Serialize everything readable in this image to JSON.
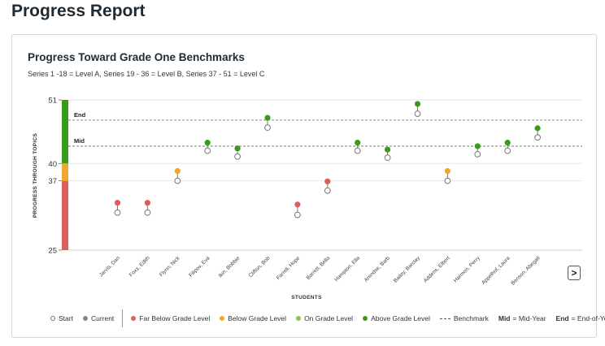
{
  "page_title": "Progress Report",
  "card": {
    "title": "Progress Toward Grade One Benchmarks",
    "subtitle": "Series 1 -18 = Level A, Series 19 - 36 = Level B, Series 37 - 51 = Level C",
    "next_icon": "chevron-right-icon",
    "next_label": ">"
  },
  "colors": {
    "far_below": "#e05d5d",
    "below": "#f0a92a",
    "on": "#8bc34a",
    "above": "#3c9a1a",
    "start": "#ffffff",
    "current": "#888888"
  },
  "chart_data": {
    "type": "scatter",
    "title": "Progress Toward Grade One Benchmarks",
    "subtitle": "Series 1 -18 = Level A, Series 19 - 36 = Level B, Series 37 - 51 = Level C",
    "xlabel": "STUDENTS",
    "ylabel": "PROGRESS THROUGH TOPICS",
    "ylim": [
      25,
      51
    ],
    "yticks": [
      25,
      37,
      40,
      51
    ],
    "bands": [
      {
        "from": 25,
        "to": 37,
        "status": "far_below"
      },
      {
        "from": 37,
        "to": 40,
        "status": "below"
      },
      {
        "from": 40,
        "to": 51,
        "status": "above"
      }
    ],
    "benchmarks": [
      {
        "label": "End",
        "value": 47.5
      },
      {
        "label": "Mid",
        "value": 43
      }
    ],
    "students": [
      {
        "name": "Jarvis, Dan",
        "start": 31.5,
        "current": 33.2,
        "status": "far_below"
      },
      {
        "name": "Foxx, Edith",
        "start": 31.5,
        "current": 33.2,
        "status": "far_below"
      },
      {
        "name": "Flynn, Nick",
        "start": 37,
        "current": 38.7,
        "status": "below"
      },
      {
        "name": "Filipov, Eva",
        "start": 42.2,
        "current": 43.6,
        "status": "above"
      },
      {
        "name": "Ikin, Bobbie",
        "start": 41.2,
        "current": 42.6,
        "status": "above"
      },
      {
        "name": "Clifton, Bob",
        "start": 46.2,
        "current": 47.9,
        "status": "above"
      },
      {
        "name": "Farrell, Hope",
        "start": 31.1,
        "current": 32.9,
        "status": "far_below"
      },
      {
        "name": "Barrett, Bella",
        "start": 35.3,
        "current": 36.9,
        "status": "far_below"
      },
      {
        "name": "Hampton, Ella",
        "start": 42.2,
        "current": 43.6,
        "status": "above"
      },
      {
        "name": "Arendse, Barb",
        "start": 41,
        "current": 42.4,
        "status": "above"
      },
      {
        "name": "Bailey, Barclay",
        "start": 48.6,
        "current": 50.3,
        "status": "above"
      },
      {
        "name": "Addens, Elbert",
        "start": 37,
        "current": 38.7,
        "status": "below"
      },
      {
        "name": "Harmon, Perry",
        "start": 41.6,
        "current": 43,
        "status": "above"
      },
      {
        "name": "Appelhof, Laura",
        "start": 42.2,
        "current": 43.6,
        "status": "above"
      },
      {
        "name": "Benson, Abegail",
        "start": 44.5,
        "current": 46.1,
        "status": "above"
      }
    ]
  },
  "legend": {
    "start": "Start",
    "current": "Current",
    "far_below": "Far Below Grade Level",
    "below": "Below Grade Level",
    "on": "On Grade Level",
    "above": "Above Grade Level",
    "benchmark": "Benchmark",
    "mid_key": "Mid",
    "mid_desc": "= Mid-Year",
    "end_key": "End",
    "end_desc": "= End-of-Year"
  }
}
